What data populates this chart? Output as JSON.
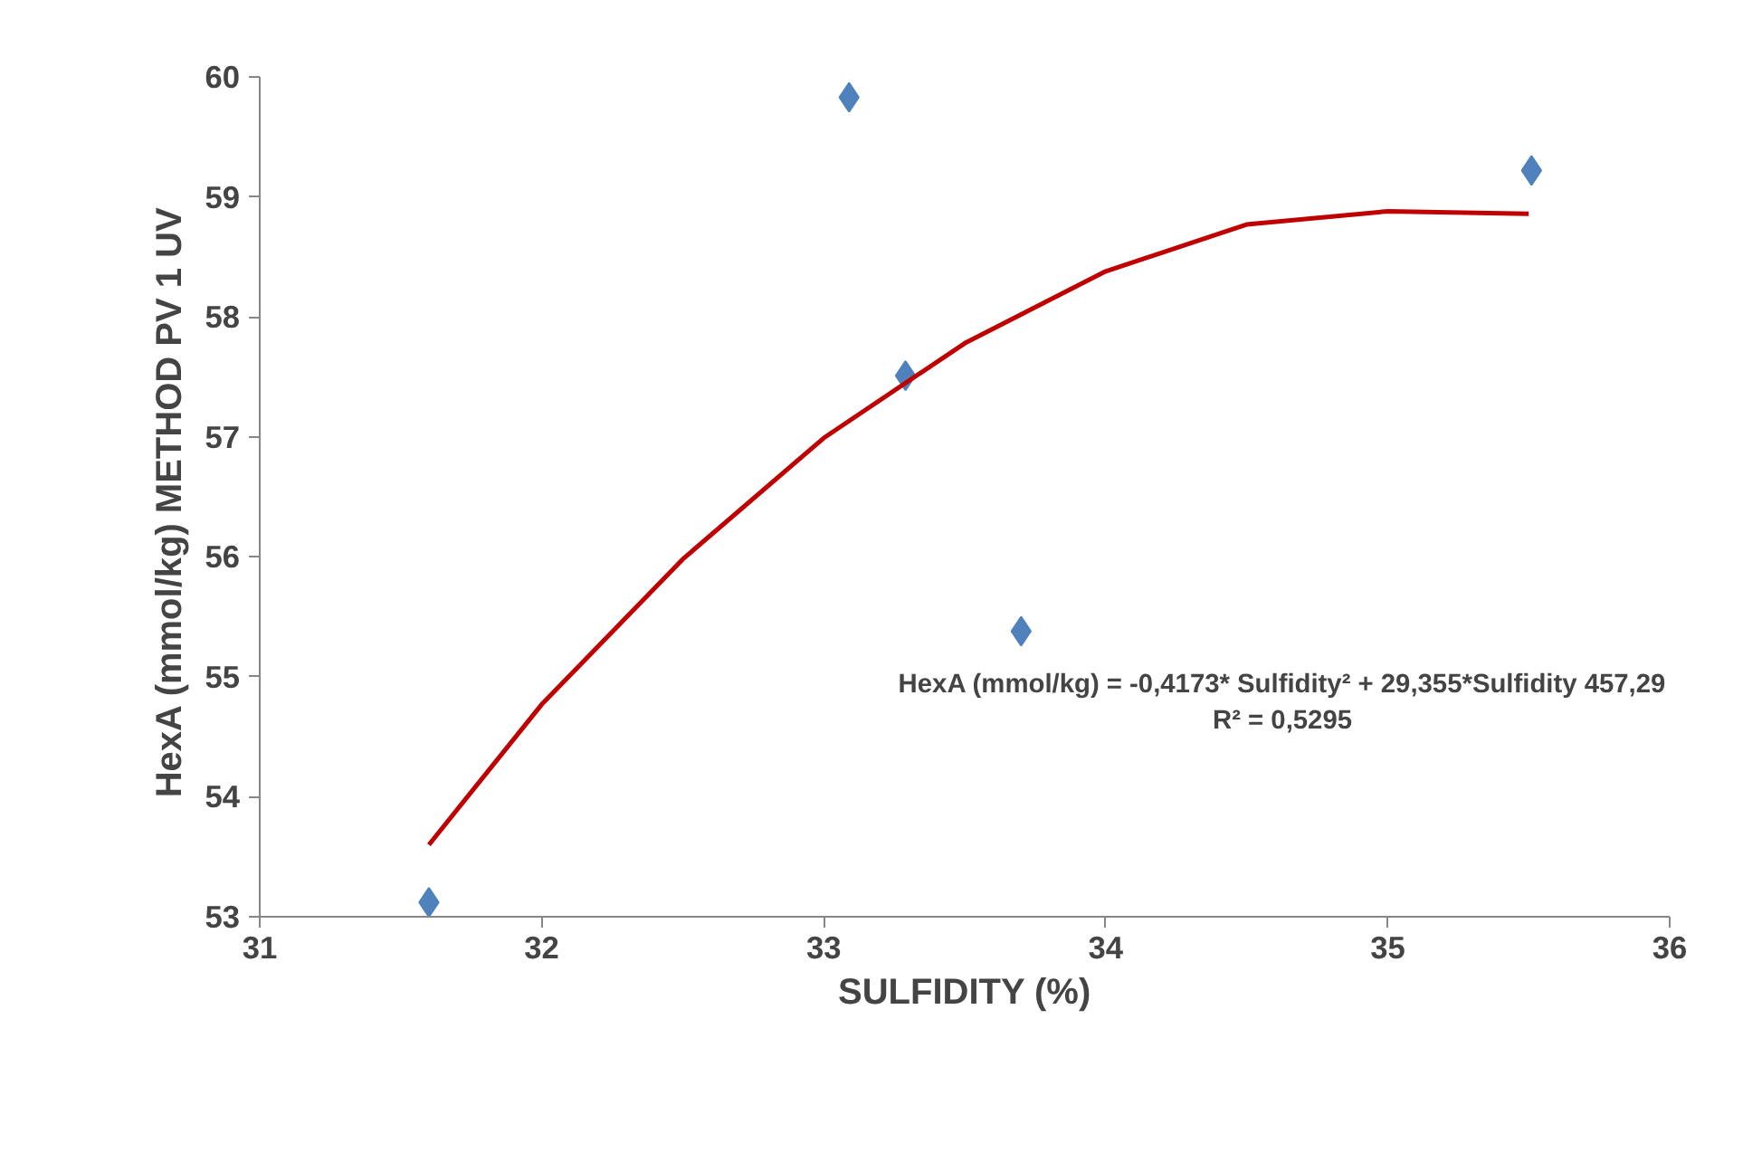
{
  "chart_data": {
    "type": "scatter",
    "xlabel": "SULFIDITY (%)",
    "ylabel": "HexA (mmol/kg) METHOD  PV 1 UV",
    "xlim": [
      31,
      36
    ],
    "xticks": [
      31,
      32,
      33,
      34,
      35,
      36
    ],
    "ylim": [
      53,
      60
    ],
    "yticks": [
      53,
      54,
      55,
      56,
      57,
      58,
      59,
      60
    ],
    "grid": false,
    "marker": "diamond",
    "series": [
      {
        "color": "#4f81bd",
        "x": [
          31.6,
          33.09,
          33.29,
          33.7,
          35.51
        ],
        "values": [
          53.12,
          59.83,
          57.51,
          55.38,
          59.22
        ]
      },
      {
        "type": "line",
        "marker": "none",
        "color": "#c00000",
        "line_style": "solid",
        "x": [
          31.6,
          32,
          32.5,
          33,
          33.5,
          34,
          34.5,
          35,
          35.5
        ],
        "values": [
          53.6,
          54.77,
          55.98,
          56.99,
          57.78,
          58.38,
          58.77,
          58.88,
          58.86
        ]
      }
    ],
    "annotations": [
      "HexA (mmol/kg) = -0,4173* Sulfidity² + 29,355*Sulfidity 457,29",
      "R² = 0,5295"
    ]
  }
}
